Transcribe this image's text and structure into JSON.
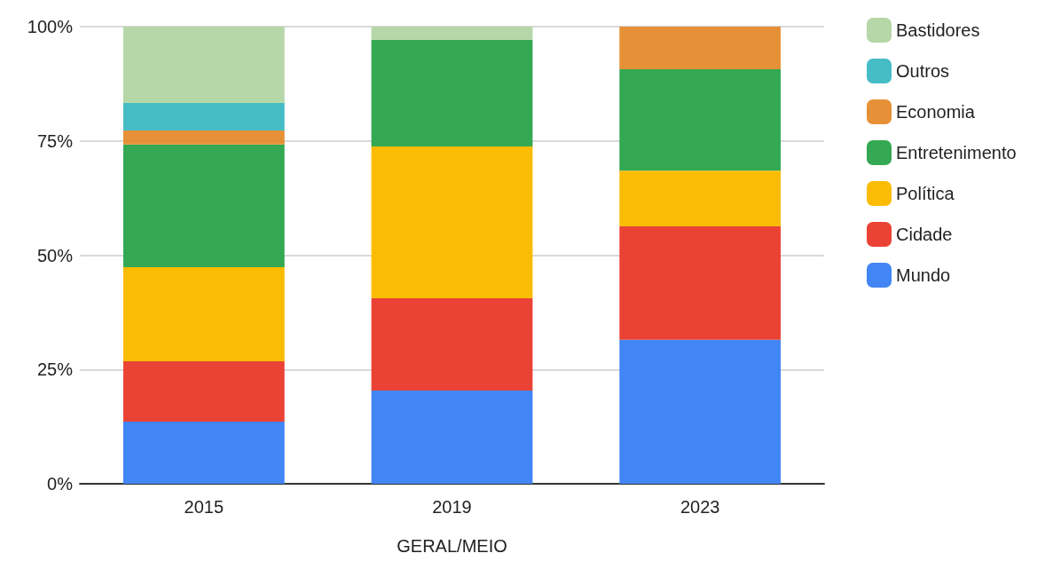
{
  "chart_data": {
    "type": "bar",
    "stacked": true,
    "xlabel": "GERAL/MEIO",
    "categories": [
      "2015",
      "2019",
      "2023"
    ],
    "series": [
      {
        "name": "Mundo",
        "color": "#4285f4",
        "values": [
          13.6,
          20.4,
          31.5
        ]
      },
      {
        "name": "Cidade",
        "color": "#ea4335",
        "values": [
          13.2,
          20.2,
          24.8
        ]
      },
      {
        "name": "Política",
        "color": "#fbbc04",
        "values": [
          20.6,
          33.2,
          12.2
        ]
      },
      {
        "name": "Entretenimento",
        "color": "#34a853",
        "values": [
          26.8,
          23.3,
          22.2
        ]
      },
      {
        "name": "Economia",
        "color": "#e69138",
        "values": [
          3.1,
          null,
          9.3
        ]
      },
      {
        "name": "Outros",
        "color": "#46bdc6",
        "values": [
          6.0,
          null,
          null
        ]
      },
      {
        "name": "Bastidores",
        "color": "#b6d7a8",
        "values": [
          16.7,
          2.9,
          null
        ]
      }
    ],
    "ylim": [
      0,
      100
    ],
    "yticks": [
      {
        "value": 0,
        "label": "0%"
      },
      {
        "value": 25,
        "label": "25%"
      },
      {
        "value": 50,
        "label": "50%"
      },
      {
        "value": 75,
        "label": "75%"
      },
      {
        "value": 100,
        "label": "100%"
      }
    ],
    "grid": "y",
    "legend": "right"
  }
}
